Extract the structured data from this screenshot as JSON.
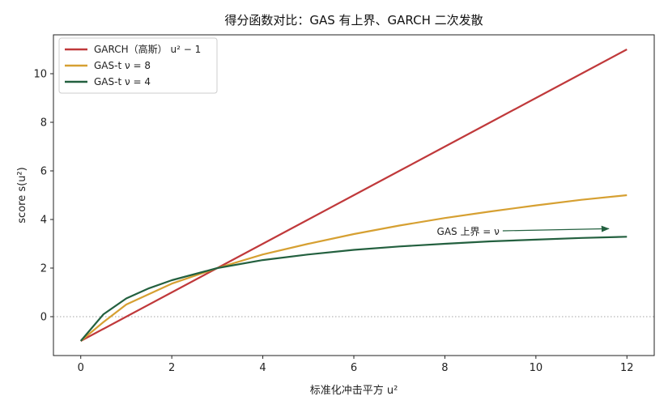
{
  "chart_data": {
    "type": "line",
    "title": "得分函数对比：GAS 有上界、GARCH 二次发散",
    "xlabel": "标准化冲击平方 u²",
    "ylabel": "score s(u²)",
    "xlim": [
      -0.6,
      12.6
    ],
    "ylim": [
      -1.6,
      11.6
    ],
    "xticks": [
      "0",
      "2",
      "4",
      "6",
      "8",
      "10",
      "12"
    ],
    "yticks": [
      "0",
      "2",
      "4",
      "6",
      "8",
      "10"
    ],
    "grid": false,
    "legend_position": "top-left",
    "reference_line": {
      "y": 0,
      "style": "dotted",
      "color": "#888888"
    },
    "series": [
      {
        "name": "GARCH（高斯） u² − 1",
        "color": "#c0393b",
        "x": [
          0,
          1,
          2,
          3,
          4,
          5,
          6,
          7,
          8,
          9,
          10,
          11,
          12
        ],
        "y": [
          -1,
          0,
          1,
          2,
          3,
          4,
          5,
          6,
          7,
          8,
          9,
          10,
          11
        ]
      },
      {
        "name": "GAS-t  ν = 8",
        "color": "#d6a032",
        "x": [
          0,
          0.5,
          1,
          2,
          3,
          4,
          5,
          6,
          7,
          8,
          9,
          10,
          11,
          12
        ],
        "y": [
          -1,
          -0.22,
          0.5,
          1.36,
          2,
          2.56,
          3.0,
          3.4,
          3.75,
          4.06,
          4.33,
          4.58,
          4.81,
          5.0
        ]
      },
      {
        "name": "GAS-t  ν = 4",
        "color": "#23603f",
        "x": [
          0,
          0.5,
          1,
          1.5,
          2,
          3,
          4,
          5,
          6,
          7,
          8,
          9,
          10,
          11,
          12
        ],
        "y": [
          -1,
          0.1,
          0.75,
          1.17,
          1.5,
          2,
          2.33,
          2.56,
          2.75,
          2.89,
          3.0,
          3.1,
          3.17,
          3.24,
          3.29
        ]
      }
    ],
    "annotation": {
      "text": "GAS 上界 = ν",
      "from": {
        "x": 9.2,
        "y": 3.5
      },
      "to": {
        "x": 11.6,
        "y": 3.62
      },
      "color": "#23603f"
    }
  }
}
